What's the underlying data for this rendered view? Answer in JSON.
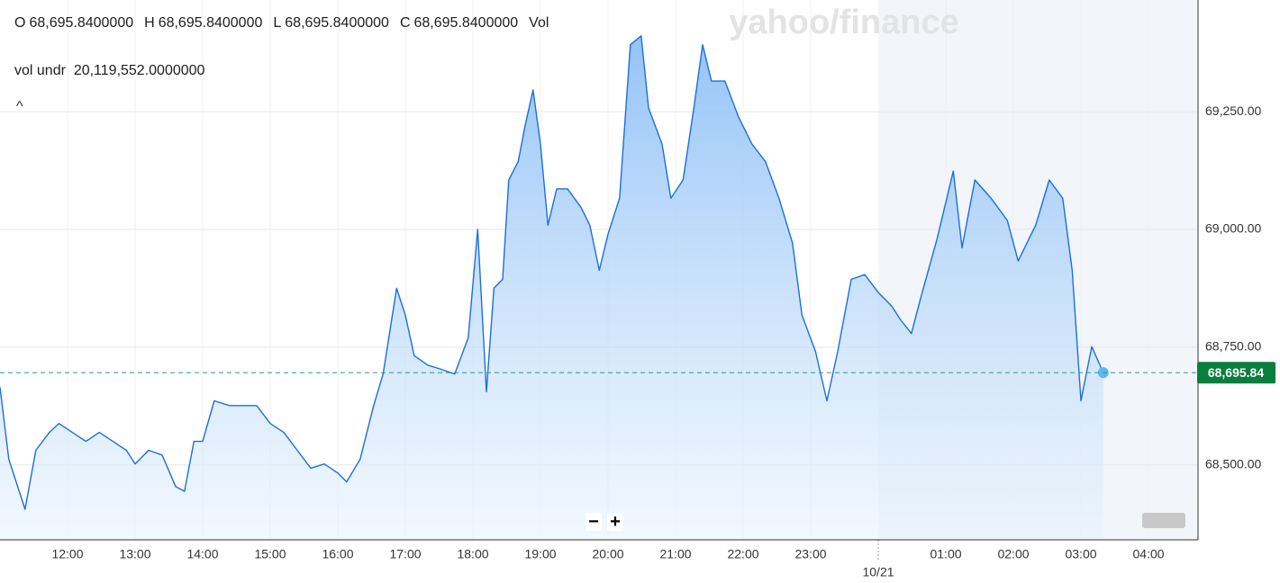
{
  "chart_data": {
    "type": "area",
    "watermark": "yahoo/finance",
    "ohlc": [
      {
        "label": "O",
        "value": "68,695.8400000"
      },
      {
        "label": "H",
        "value": "68,695.8400000"
      },
      {
        "label": "L",
        "value": "68,695.8400000"
      },
      {
        "label": "C",
        "value": "68,695.8400000"
      },
      {
        "label": "Vol",
        "value": ""
      }
    ],
    "volume_label": "vol undr",
    "volume_value": "20,119,552.0000000",
    "collapse_button": "^",
    "zoom_out": "−",
    "zoom_in": "+",
    "last_price": 68695.84,
    "last_price_label": "68,695.84",
    "color": "#1a6fe0",
    "x": [
      11.0,
      11.13,
      11.37,
      11.53,
      11.73,
      11.87,
      12.07,
      12.27,
      12.47,
      12.67,
      12.87,
      13.0,
      13.2,
      13.4,
      13.6,
      13.73,
      13.87,
      14.0,
      14.17,
      14.4,
      14.6,
      14.8,
      15.0,
      15.2,
      15.4,
      15.6,
      15.8,
      16.0,
      16.13,
      16.33,
      16.53,
      16.67,
      16.87,
      17.0,
      17.13,
      17.33,
      17.53,
      17.73,
      17.93,
      18.07,
      18.2,
      18.31,
      18.44,
      18.53,
      18.67,
      18.77,
      18.89,
      19.0,
      19.11,
      19.24,
      19.4,
      19.6,
      19.73,
      19.87,
      20.0,
      20.17,
      20.33,
      20.49,
      20.6,
      20.8,
      20.93,
      21.11,
      21.27,
      21.4,
      21.53,
      21.73,
      21.93,
      22.13,
      22.33,
      22.53,
      22.73,
      22.87,
      23.07,
      23.24,
      23.4,
      23.6,
      23.8,
      24.0,
      24.2,
      24.33,
      24.49,
      24.63,
      24.87,
      25.11,
      25.24,
      25.43,
      25.67,
      25.91,
      26.07,
      26.2,
      26.33,
      26.53,
      26.73,
      26.87,
      27.0,
      27.16,
      27.33
    ],
    "values": [
      68665,
      68512,
      68406,
      68531,
      68569,
      68588,
      68569,
      68550,
      68569,
      68550,
      68531,
      68502,
      68531,
      68521,
      68454,
      68444,
      68550,
      68550,
      68636,
      68626,
      68626,
      68626,
      68588,
      68569,
      68531,
      68493,
      68502,
      68483,
      68464,
      68512,
      68626,
      68693,
      68875,
      68818,
      68732,
      68712,
      68703,
      68693,
      68770,
      69000,
      68655,
      68875,
      68894,
      69105,
      69144,
      69219,
      69296,
      69181,
      69009,
      69086,
      69086,
      69047,
      69009,
      68913,
      68990,
      69066,
      69392,
      69411,
      69258,
      69181,
      69066,
      69105,
      69258,
      69392,
      69315,
      69315,
      69239,
      69181,
      69144,
      69066,
      68971,
      68818,
      68741,
      68636,
      68741,
      68894,
      68904,
      68866,
      68837,
      68808,
      68779,
      68856,
      68980,
      69124,
      68961,
      69105,
      69066,
      69019,
      68933,
      68971,
      69009,
      69105,
      69066,
      68913,
      68636,
      68751,
      68696
    ],
    "xlim": [
      11,
      28.733
    ],
    "xticks": [
      {
        "value": 12,
        "label": "12:00"
      },
      {
        "value": 13,
        "label": "13:00"
      },
      {
        "value": 14,
        "label": "14:00"
      },
      {
        "value": 15,
        "label": "15:00"
      },
      {
        "value": 16,
        "label": "16:00"
      },
      {
        "value": 17,
        "label": "17:00"
      },
      {
        "value": 18,
        "label": "18:00"
      },
      {
        "value": 19,
        "label": "19:00"
      },
      {
        "value": 20,
        "label": "20:00"
      },
      {
        "value": 21,
        "label": "21:00"
      },
      {
        "value": 22,
        "label": "22:00"
      },
      {
        "value": 23,
        "label": "23:00"
      },
      {
        "value": 24,
        "label": "10/21"
      },
      {
        "value": 25,
        "label": "01:00"
      },
      {
        "value": 26,
        "label": "02:00"
      },
      {
        "value": 27,
        "label": "03:00"
      },
      {
        "value": 28,
        "label": "04:00"
      }
    ],
    "ylim": [
      68341,
      69487
    ],
    "yticks": [
      {
        "value": 68500,
        "label": "68,500.00"
      },
      {
        "value": 68750,
        "label": "68,750.00"
      },
      {
        "value": 69000,
        "label": "69,000.00"
      },
      {
        "value": 69250,
        "label": "69,250.00"
      }
    ],
    "grid": true
  }
}
